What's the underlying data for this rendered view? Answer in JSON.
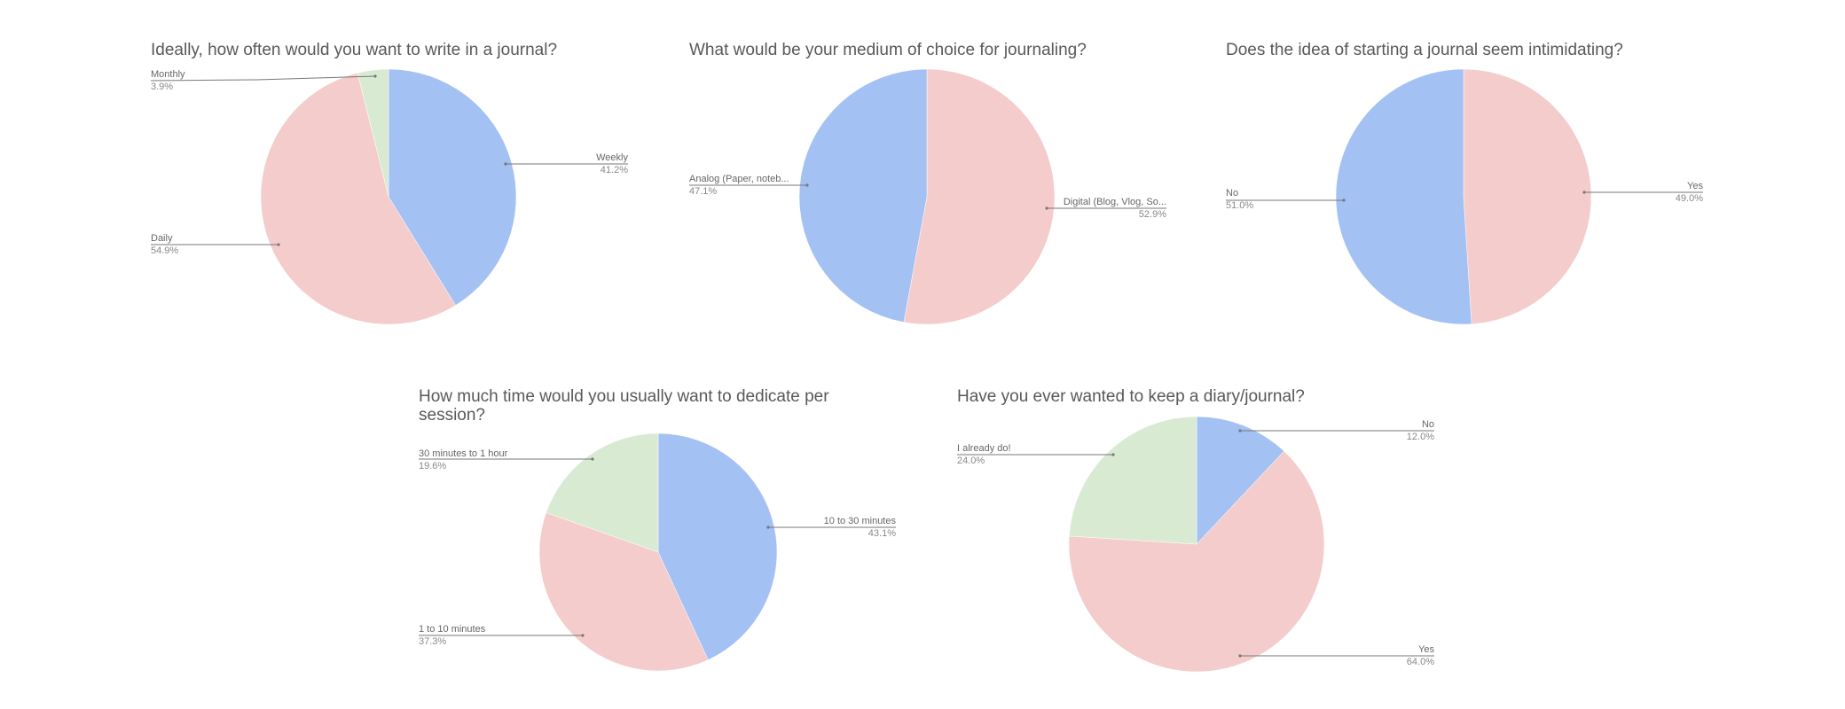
{
  "colors": {
    "blue": "#a4c1f4",
    "pink": "#f4cccc",
    "green": "#d9ead3",
    "title": "#595959"
  },
  "chart_data": [
    {
      "type": "pie",
      "title": "Ideally, how often would you want to write in a journal?",
      "slices": [
        {
          "label": "Weekly",
          "pct_label": "41.2%",
          "value": 41.2,
          "color": "#a4c1f4"
        },
        {
          "label": "Daily",
          "pct_label": "54.9%",
          "value": 54.9,
          "color": "#f4cccc"
        },
        {
          "label": "Monthly",
          "pct_label": "3.9%",
          "value": 3.9,
          "color": "#d9ead3"
        }
      ]
    },
    {
      "type": "pie",
      "title": "What would be your medium of choice for journaling?",
      "slices": [
        {
          "label": "Digital (Blog, Vlog, So...",
          "pct_label": "52.9%",
          "value": 52.9,
          "color": "#f4cccc"
        },
        {
          "label": "Analog (Paper, noteb...",
          "pct_label": "47.1%",
          "value": 47.1,
          "color": "#a4c1f4"
        }
      ]
    },
    {
      "type": "pie",
      "title": "Does the idea of starting a journal seem intimidating?",
      "slices": [
        {
          "label": "Yes",
          "pct_label": "49.0%",
          "value": 49.0,
          "color": "#f4cccc"
        },
        {
          "label": "No",
          "pct_label": "51.0%",
          "value": 51.0,
          "color": "#a4c1f4"
        }
      ]
    },
    {
      "type": "pie",
      "title": "How much time would you usually want to dedicate per session?",
      "slices": [
        {
          "label": "10 to 30 minutes",
          "pct_label": "43.1%",
          "value": 43.1,
          "color": "#a4c1f4"
        },
        {
          "label": "1 to 10 minutes",
          "pct_label": "37.3%",
          "value": 37.3,
          "color": "#f4cccc"
        },
        {
          "label": "30 minutes to 1 hour",
          "pct_label": "19.6%",
          "value": 19.6,
          "color": "#d9ead3"
        }
      ]
    },
    {
      "type": "pie",
      "title": "Have you ever wanted to keep a diary/journal?",
      "slices": [
        {
          "label": "No",
          "pct_label": "12.0%",
          "value": 12.0,
          "color": "#a4c1f4"
        },
        {
          "label": "Yes",
          "pct_label": "64.0%",
          "value": 64.0,
          "color": "#f4cccc"
        },
        {
          "label": "I already do!",
          "pct_label": "24.0%",
          "value": 24.0,
          "color": "#d9ead3"
        }
      ]
    }
  ]
}
